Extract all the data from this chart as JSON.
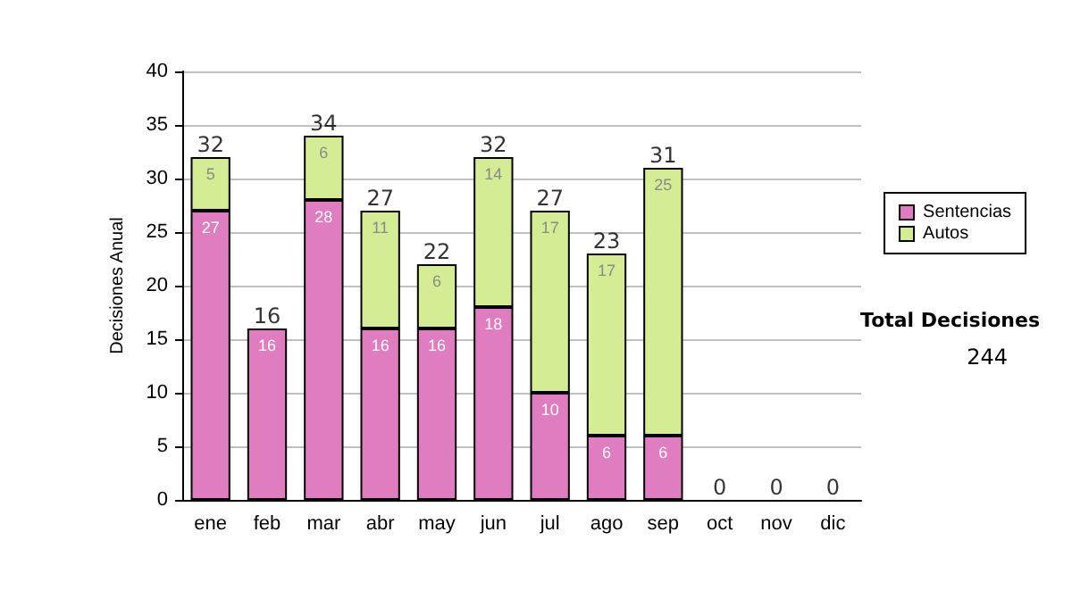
{
  "chart_data": {
    "type": "bar",
    "stacked": true,
    "ylabel": "Decisiones Anual",
    "categories": [
      "ene",
      "feb",
      "mar",
      "abr",
      "may",
      "jun",
      "jul",
      "ago",
      "sep",
      "oct",
      "nov",
      "dic"
    ],
    "series": [
      {
        "name": "Sentencias",
        "color": "#e07cc0",
        "values": [
          27,
          16,
          28,
          16,
          16,
          18,
          10,
          6,
          6,
          0,
          0,
          0
        ],
        "value_labels": [
          "27",
          "16",
          "28",
          "16",
          "16",
          "18",
          "10",
          "6",
          "6",
          null,
          null,
          null
        ]
      },
      {
        "name": "Autos",
        "color": "#d4ec94",
        "values": [
          5,
          0,
          6,
          11,
          6,
          14,
          17,
          17,
          25,
          0,
          0,
          0
        ],
        "value_labels": [
          "5",
          null,
          "6",
          "11",
          "6",
          "14",
          "17",
          "17",
          "25",
          null,
          null,
          null
        ]
      }
    ],
    "totals": [
      "32",
      "16",
      "34",
      "27",
      "22",
      "32",
      "27",
      "23",
      "31",
      "0",
      "0",
      "0"
    ],
    "ylim": [
      0,
      40
    ],
    "yticks": [
      0,
      5,
      10,
      15,
      20,
      25,
      30,
      35,
      40
    ],
    "grid": "y",
    "legend": "right",
    "annotations": [
      "Total Decisiones",
      "244"
    ]
  }
}
